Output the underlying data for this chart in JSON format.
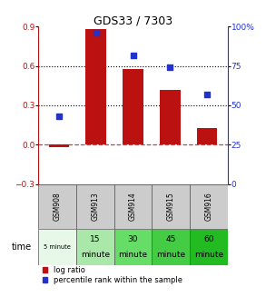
{
  "title": "GDS33 / 7303",
  "samples": [
    "GSM908",
    "GSM913",
    "GSM914",
    "GSM915",
    "GSM916"
  ],
  "time_labels_top": [
    "5 minute",
    "15",
    "30",
    "45",
    "60"
  ],
  "time_labels_bot": [
    "",
    "minute",
    "minute",
    "minute",
    "minute"
  ],
  "time_colors": [
    "#e8f8e8",
    "#aae8aa",
    "#66dd66",
    "#44cc44",
    "#22bb22"
  ],
  "log_ratio": [
    -0.02,
    0.88,
    0.58,
    0.42,
    0.13
  ],
  "percentile_rank": [
    43,
    96,
    82,
    74,
    57
  ],
  "bar_color": "#bb1111",
  "dot_color": "#2233cc",
  "ylim_left": [
    -0.3,
    0.9
  ],
  "ylim_right": [
    0,
    100
  ],
  "yticks_left": [
    -0.3,
    0.0,
    0.3,
    0.6,
    0.9
  ],
  "yticks_right": [
    0,
    25,
    50,
    75,
    100
  ],
  "hline_y": [
    0.3,
    0.6
  ],
  "background_color": "#ffffff",
  "plot_bg": "#ffffff",
  "legend_log": "log ratio",
  "legend_pct": "percentile rank within the sample",
  "sample_bg": "#cccccc"
}
